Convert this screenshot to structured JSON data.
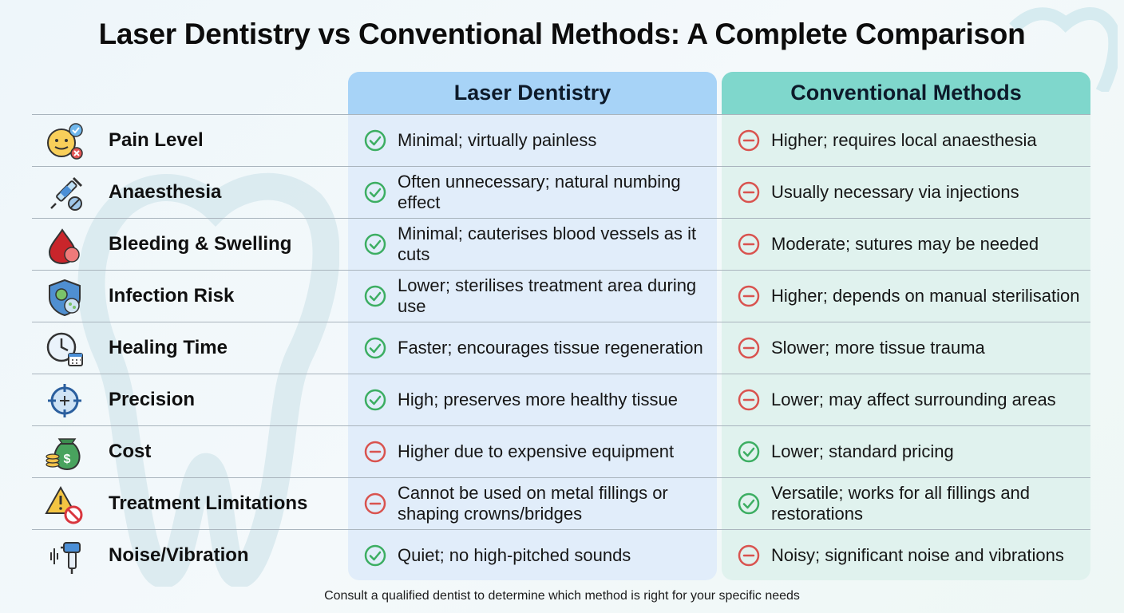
{
  "title": "Laser Dentistry vs Conventional Methods: A Complete Comparison",
  "columns": {
    "laser": "Laser Dentistry",
    "conventional": "Conventional Methods"
  },
  "colors": {
    "positive": "#3cae62",
    "negative": "#d9534f",
    "laser_header": "#a7d3f7",
    "conventional_header": "#7fd7cc"
  },
  "rows": [
    {
      "icon": "face-check-cross-icon",
      "label": "Pain Level",
      "laser": {
        "text": "Minimal; virtually painless",
        "status": "positive"
      },
      "conventional": {
        "text": "Higher; requires local anaesthesia",
        "status": "negative"
      }
    },
    {
      "icon": "syringe-pill-icon",
      "label": "Anaesthesia",
      "laser": {
        "text": "Often unnecessary; natural numbing effect",
        "status": "positive"
      },
      "conventional": {
        "text": "Usually necessary via injections",
        "status": "negative"
      }
    },
    {
      "icon": "blood-drop-icon",
      "label": "Bleeding & Swelling",
      "laser": {
        "text": "Minimal; cauterises blood vessels as it cuts",
        "status": "positive"
      },
      "conventional": {
        "text": "Moderate; sutures may be needed",
        "status": "negative"
      }
    },
    {
      "icon": "shield-germ-icon",
      "label": "Infection Risk",
      "laser": {
        "text": "Lower; sterilises treatment area during use",
        "status": "positive"
      },
      "conventional": {
        "text": "Higher; depends on manual sterilisation",
        "status": "negative"
      }
    },
    {
      "icon": "clock-calendar-icon",
      "label": "Healing Time",
      "laser": {
        "text": "Faster; encourages tissue regeneration",
        "status": "positive"
      },
      "conventional": {
        "text": "Slower; more tissue trauma",
        "status": "negative"
      }
    },
    {
      "icon": "crosshair-icon",
      "label": "Precision",
      "laser": {
        "text": "High; preserves more healthy tissue",
        "status": "positive"
      },
      "conventional": {
        "text": "Lower; may affect surrounding areas",
        "status": "negative"
      }
    },
    {
      "icon": "money-bag-icon",
      "label": "Cost",
      "laser": {
        "text": "Higher due to expensive equipment",
        "status": "negative"
      },
      "conventional": {
        "text": "Lower; standard pricing",
        "status": "positive"
      }
    },
    {
      "icon": "warning-prohibited-icon",
      "label": "Treatment Limitations",
      "laser": {
        "text": "Cannot be used on metal fillings or shaping crowns/bridges",
        "status": "negative"
      },
      "conventional": {
        "text": "Versatile; works for all fillings and restorations",
        "status": "positive"
      }
    },
    {
      "icon": "drill-sound-icon",
      "label": "Noise/Vibration",
      "laser": {
        "text": "Quiet; no high-pitched sounds",
        "status": "positive"
      },
      "conventional": {
        "text": "Noisy; significant noise and vibrations",
        "status": "negative"
      }
    }
  ],
  "footer": "Consult a qualified dentist to determine which method is right for your specific needs"
}
